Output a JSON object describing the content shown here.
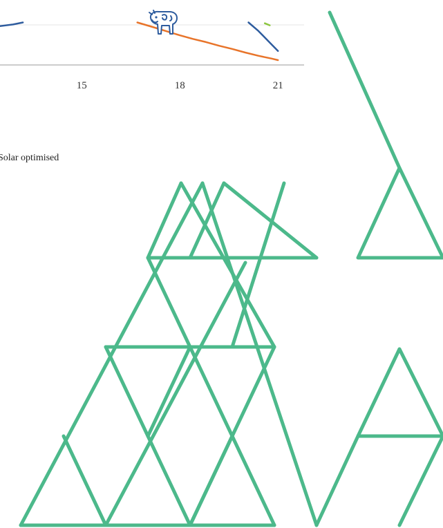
{
  "chart_data": {
    "type": "line",
    "x_ticks": [
      "15",
      "18",
      "21"
    ],
    "xlim": [
      12.5,
      21.8
    ],
    "ylim": [
      0,
      1
    ],
    "grid": true,
    "legend": [
      "Solar optimised"
    ],
    "series": [
      {
        "color": "#2e5c9e",
        "x": [
          12.5,
          12.9,
          13.2
        ],
        "y": [
          0.97,
          1.01,
          1.06
        ]
      },
      {
        "color": "#e8742a",
        "x": [
          16.7,
          17.2,
          17.6,
          18.0,
          18.4,
          18.8,
          19.2,
          19.6,
          20.0,
          20.4,
          20.8,
          21.0
        ],
        "y": [
          1.06,
          0.94,
          0.84,
          0.74,
          0.65,
          0.57,
          0.48,
          0.4,
          0.31,
          0.23,
          0.16,
          0.12
        ]
      },
      {
        "color": "#2e5c9e",
        "x": [
          20.1,
          20.4,
          20.7,
          21.0
        ],
        "y": [
          1.06,
          0.85,
          0.6,
          0.35
        ]
      },
      {
        "color": "#8cc63f",
        "x": [
          20.6,
          20.75
        ],
        "y": [
          1.04,
          0.99
        ]
      }
    ]
  },
  "legend_label": "Solar optimised",
  "icons": {
    "marker": "cow-icon",
    "decoration": "triangle-pattern"
  },
  "colors": {
    "decoration": "#4cb98b",
    "axis": "#bbbbbb",
    "grid": "#e6e6e6",
    "cow": "#2e5c9e"
  }
}
